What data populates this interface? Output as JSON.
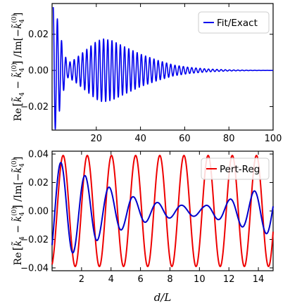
{
  "chart_data": [
    {
      "type": "line",
      "panel": "top",
      "xlabel": "",
      "ylabel": "Re[k̃4 − k̃4(0)] /Im[−k̃4(0)]",
      "xlim": [
        0,
        100
      ],
      "ylim": [
        -0.033,
        0.037
      ],
      "xticks": [
        20,
        40,
        60,
        80,
        100
      ],
      "yticks": [
        -0.02,
        0.0,
        0.02
      ],
      "xtick_labels": [
        "20",
        "40",
        "60",
        "80",
        "100"
      ],
      "ytick_labels": [
        "−0.02",
        "0.00",
        "0.02"
      ],
      "grid": false,
      "legend_position": "top-right",
      "series": [
        {
          "name": "Fit/Exact",
          "color": "#0000ee",
          "model": "damped oscillation with beating envelope",
          "x_range": [
            0.5,
            100
          ],
          "period": 1.9,
          "envelope_points": [
            [
              0.5,
              0.035
            ],
            [
              2,
              0.031
            ],
            [
              5,
              0.012
            ],
            [
              7,
              0.004
            ],
            [
              10,
              0.006
            ],
            [
              15,
              0.011
            ],
            [
              20,
              0.016
            ],
            [
              23,
              0.0175
            ],
            [
              27,
              0.0165
            ],
            [
              33,
              0.013
            ],
            [
              40,
              0.009
            ],
            [
              48,
              0.0055
            ],
            [
              55,
              0.003
            ],
            [
              62,
              0.0017
            ],
            [
              70,
              0.0008
            ],
            [
              80,
              0.0003
            ],
            [
              90,
              0.0001
            ],
            [
              100,
              0.0
            ]
          ]
        }
      ]
    },
    {
      "type": "line",
      "panel": "bottom",
      "xlabel": "d/L",
      "ylabel": "Re[k̃4 − k̃4(0)] /Im[−k̃4(0)]",
      "xlim": [
        0,
        15
      ],
      "ylim": [
        -0.042,
        0.042
      ],
      "xticks": [
        2,
        4,
        6,
        8,
        10,
        12,
        14
      ],
      "yticks": [
        -0.04,
        -0.02,
        0.0,
        0.02,
        0.04
      ],
      "xtick_labels": [
        "2",
        "4",
        "6",
        "8",
        "10",
        "12",
        "14"
      ],
      "ytick_labels": [
        "−0.04",
        "−0.02",
        "0.00",
        "0.02",
        "0.04"
      ],
      "grid": false,
      "legend_position": "top-right",
      "series": [
        {
          "name": "Pert-Reg",
          "color": "#ee0000",
          "model": "sinusoid",
          "amplitude": 0.039,
          "period": 1.64,
          "phase_x_of_first_peak": 0.75,
          "x_range": [
            0,
            15
          ]
        },
        {
          "name": "",
          "color": "#0000cc",
          "model": "beating oscillation",
          "period": 1.64,
          "phase_x_of_first_peak": 0.6,
          "x_range": [
            0,
            15
          ],
          "envelope_points": [
            [
              0,
              0.036
            ],
            [
              0.6,
              0.034
            ],
            [
              2.2,
              0.025
            ],
            [
              3.8,
              0.017
            ],
            [
              5.5,
              0.01
            ],
            [
              7.1,
              0.006
            ],
            [
              8.8,
              0.004
            ],
            [
              10.3,
              0.0035
            ],
            [
              12.0,
              0.008
            ],
            [
              13.7,
              0.014
            ],
            [
              15,
              0.017
            ]
          ]
        }
      ]
    }
  ],
  "legend": {
    "top_label": "Fit/Exact",
    "bottom_label": "Pert-Reg"
  }
}
